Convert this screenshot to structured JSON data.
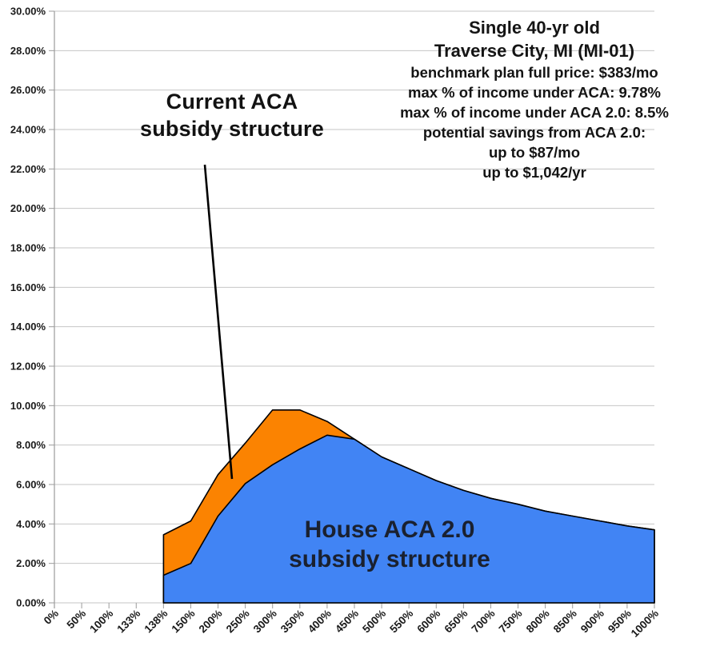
{
  "chart_data": {
    "type": "area",
    "title": "",
    "xlabel": "",
    "ylabel": "",
    "categories": [
      "0%",
      "50%",
      "100%",
      "133%",
      "138%",
      "150%",
      "200%",
      "250%",
      "300%",
      "350%",
      "400%",
      "450%",
      "500%",
      "550%",
      "600%",
      "650%",
      "700%",
      "750%",
      "800%",
      "850%",
      "900%",
      "950%",
      "1000%"
    ],
    "series": [
      {
        "name": "Current ACA subsidy structure",
        "color": "#FB8301",
        "values": [
          null,
          null,
          null,
          null,
          3.45,
          4.15,
          6.5,
          8.1,
          9.78,
          9.78,
          9.2,
          8.3,
          7.4,
          6.8,
          6.2,
          5.7,
          5.3,
          5.0,
          4.65,
          4.4,
          4.15,
          3.9,
          3.7
        ]
      },
      {
        "name": "House ACA 2.0 subsidy structure",
        "color": "#4184F4",
        "values": [
          null,
          null,
          null,
          null,
          1.4,
          2.0,
          4.4,
          6.05,
          7.0,
          7.8,
          8.5,
          8.3,
          7.4,
          6.8,
          6.2,
          5.7,
          5.3,
          5.0,
          4.65,
          4.4,
          4.15,
          3.9,
          3.7
        ]
      }
    ],
    "ylim": [
      0,
      30
    ],
    "y_tick_step": 2,
    "y_tick_labels": [
      "0.00%",
      "2.00%",
      "4.00%",
      "6.00%",
      "8.00%",
      "10.00%",
      "12.00%",
      "14.00%",
      "16.00%",
      "18.00%",
      "20.00%",
      "22.00%",
      "24.00%",
      "26.00%",
      "28.00%",
      "30.00%"
    ],
    "grid": true,
    "legend": "none",
    "gridline_color": "#C6C6C6",
    "axis_color": "#9B9B9B",
    "outline_color": "#000000",
    "tick_label_color": "#1A1A1A"
  },
  "annotations": {
    "current_aca": {
      "line1": "Current ACA",
      "line2": "subsidy structure"
    },
    "house_aca": {
      "line1": "House ACA 2.0",
      "line2": "subsidy structure"
    },
    "info": {
      "title1": "Single 40-yr old",
      "title2": "Traverse City, MI (MI-01)",
      "detail1": "benchmark plan full price: $383/mo",
      "detail2": "max % of income under ACA: 9.78%",
      "detail3": "max % of income under ACA 2.0: 8.5%",
      "detail4": "potential savings from ACA 2.0:",
      "detail5": "up to $87/mo",
      "detail6": "up to $1,042/yr"
    }
  }
}
